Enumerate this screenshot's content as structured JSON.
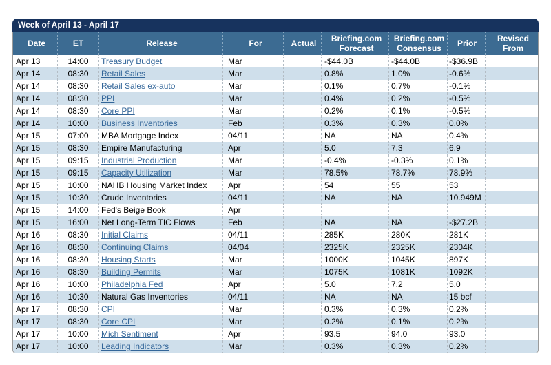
{
  "title": "Week of April 13 - April 17",
  "columns": [
    {
      "key": "date",
      "label": "Date"
    },
    {
      "key": "et",
      "label": "ET"
    },
    {
      "key": "release",
      "label": "Release"
    },
    {
      "key": "for",
      "label": "For"
    },
    {
      "key": "actual",
      "label": "Actual"
    },
    {
      "key": "forecast",
      "label": "Briefing.com\nForecast"
    },
    {
      "key": "consensus",
      "label": "Briefing.com\nConsensus"
    },
    {
      "key": "prior",
      "label": "Prior"
    },
    {
      "key": "revised",
      "label": "Revised\nFrom"
    }
  ],
  "rows": [
    {
      "date": "Apr 13",
      "et": "14:00",
      "release": "Treasury Budget",
      "release_link": true,
      "for": "Mar",
      "actual": "",
      "forecast": "-$44.0B",
      "consensus": "-$44.0B",
      "prior": "-$36.9B",
      "revised": ""
    },
    {
      "date": "Apr 14",
      "et": "08:30",
      "release": "Retail Sales",
      "release_link": true,
      "for": "Mar",
      "actual": "",
      "forecast": "0.8%",
      "consensus": "1.0%",
      "prior": "-0.6%",
      "revised": ""
    },
    {
      "date": "Apr 14",
      "et": "08:30",
      "release": "Retail Sales ex-auto",
      "release_link": true,
      "for": "Mar",
      "actual": "",
      "forecast": "0.1%",
      "consensus": "0.7%",
      "prior": "-0.1%",
      "revised": ""
    },
    {
      "date": "Apr 14",
      "et": "08:30",
      "release": "PPI",
      "release_link": true,
      "for": "Mar",
      "actual": "",
      "forecast": "0.4%",
      "consensus": "0.2%",
      "prior": "-0.5%",
      "revised": ""
    },
    {
      "date": "Apr 14",
      "et": "08:30",
      "release": "Core PPI",
      "release_link": true,
      "for": "Mar",
      "actual": "",
      "forecast": "0.2%",
      "consensus": "0.1%",
      "prior": "-0.5%",
      "revised": ""
    },
    {
      "date": "Apr 14",
      "et": "10:00",
      "release": "Business Inventories",
      "release_link": true,
      "for": "Feb",
      "actual": "",
      "forecast": "0.3%",
      "consensus": "0.3%",
      "prior": "0.0%",
      "revised": ""
    },
    {
      "date": "Apr 15",
      "et": "07:00",
      "release": "MBA Mortgage Index",
      "release_link": false,
      "for": "04/11",
      "actual": "",
      "forecast": "NA",
      "consensus": "NA",
      "prior": "0.4%",
      "revised": ""
    },
    {
      "date": "Apr 15",
      "et": "08:30",
      "release": "Empire Manufacturing",
      "release_link": false,
      "for": "Apr",
      "actual": "",
      "forecast": "5.0",
      "consensus": "7.3",
      "prior": "6.9",
      "revised": ""
    },
    {
      "date": "Apr 15",
      "et": "09:15",
      "release": "Industrial Production",
      "release_link": true,
      "for": "Mar",
      "actual": "",
      "forecast": "-0.4%",
      "consensus": "-0.3%",
      "prior": "0.1%",
      "revised": ""
    },
    {
      "date": "Apr 15",
      "et": "09:15",
      "release": "Capacity Utilization",
      "release_link": true,
      "for": "Mar",
      "actual": "",
      "forecast": "78.5%",
      "consensus": "78.7%",
      "prior": "78.9%",
      "revised": ""
    },
    {
      "date": "Apr 15",
      "et": "10:00",
      "release": "NAHB Housing Market Index",
      "release_link": false,
      "for": "Apr",
      "actual": "",
      "forecast": "54",
      "consensus": "55",
      "prior": "53",
      "revised": ""
    },
    {
      "date": "Apr 15",
      "et": "10:30",
      "release": "Crude Inventories",
      "release_link": false,
      "for": "04/11",
      "actual": "",
      "forecast": "NA",
      "consensus": "NA",
      "prior": "10.949M",
      "revised": ""
    },
    {
      "date": "Apr 15",
      "et": "14:00",
      "release": "Fed's Beige Book",
      "release_link": false,
      "for": "Apr",
      "actual": "",
      "forecast": "",
      "consensus": "",
      "prior": "",
      "revised": ""
    },
    {
      "date": "Apr 15",
      "et": "16:00",
      "release": "Net Long-Term TIC Flows",
      "release_link": false,
      "for": "Feb",
      "actual": "",
      "forecast": "NA",
      "consensus": "NA",
      "prior": "-$27.2B",
      "revised": ""
    },
    {
      "date": "Apr 16",
      "et": "08:30",
      "release": "Initial Claims",
      "release_link": true,
      "for": "04/11",
      "actual": "",
      "forecast": "285K",
      "consensus": "280K",
      "prior": "281K",
      "revised": ""
    },
    {
      "date": "Apr 16",
      "et": "08:30",
      "release": "Continuing Claims",
      "release_link": true,
      "for": "04/04",
      "actual": "",
      "forecast": "2325K",
      "consensus": "2325K",
      "prior": "2304K",
      "revised": ""
    },
    {
      "date": "Apr 16",
      "et": "08:30",
      "release": "Housing Starts",
      "release_link": true,
      "for": "Mar",
      "actual": "",
      "forecast": "1000K",
      "consensus": "1045K",
      "prior": "897K",
      "revised": ""
    },
    {
      "date": "Apr 16",
      "et": "08:30",
      "release": "Building Permits",
      "release_link": true,
      "for": "Mar",
      "actual": "",
      "forecast": "1075K",
      "consensus": "1081K",
      "prior": "1092K",
      "revised": ""
    },
    {
      "date": "Apr 16",
      "et": "10:00",
      "release": "Philadelphia Fed",
      "release_link": true,
      "for": "Apr",
      "actual": "",
      "forecast": "5.0",
      "consensus": "7.2",
      "prior": "5.0",
      "revised": ""
    },
    {
      "date": "Apr 16",
      "et": "10:30",
      "release": "Natural Gas Inventories",
      "release_link": false,
      "for": "04/11",
      "actual": "",
      "forecast": "NA",
      "consensus": "NA",
      "prior": "15 bcf",
      "revised": ""
    },
    {
      "date": "Apr 17",
      "et": "08:30",
      "release": "CPI",
      "release_link": true,
      "for": "Mar",
      "actual": "",
      "forecast": "0.3%",
      "consensus": "0.3%",
      "prior": "0.2%",
      "revised": ""
    },
    {
      "date": "Apr 17",
      "et": "08:30",
      "release": "Core CPI",
      "release_link": true,
      "for": "Mar",
      "actual": "",
      "forecast": "0.2%",
      "consensus": "0.1%",
      "prior": "0.2%",
      "revised": ""
    },
    {
      "date": "Apr 17",
      "et": "10:00",
      "release": "Mich Sentiment",
      "release_link": true,
      "for": "Apr",
      "actual": "",
      "forecast": "93.5",
      "consensus": "94.0",
      "prior": "93.0",
      "revised": ""
    },
    {
      "date": "Apr 17",
      "et": "10:00",
      "release": "Leading Indicators",
      "release_link": true,
      "for": "Mar",
      "actual": "",
      "forecast": "0.3%",
      "consensus": "0.3%",
      "prior": "0.2%",
      "revised": ""
    }
  ],
  "colors": {
    "title_bar": "#17335e",
    "header": "#3c6b92",
    "alt_row": "#cfdfeb",
    "link": "#336699",
    "border": "#9b9b9b"
  }
}
